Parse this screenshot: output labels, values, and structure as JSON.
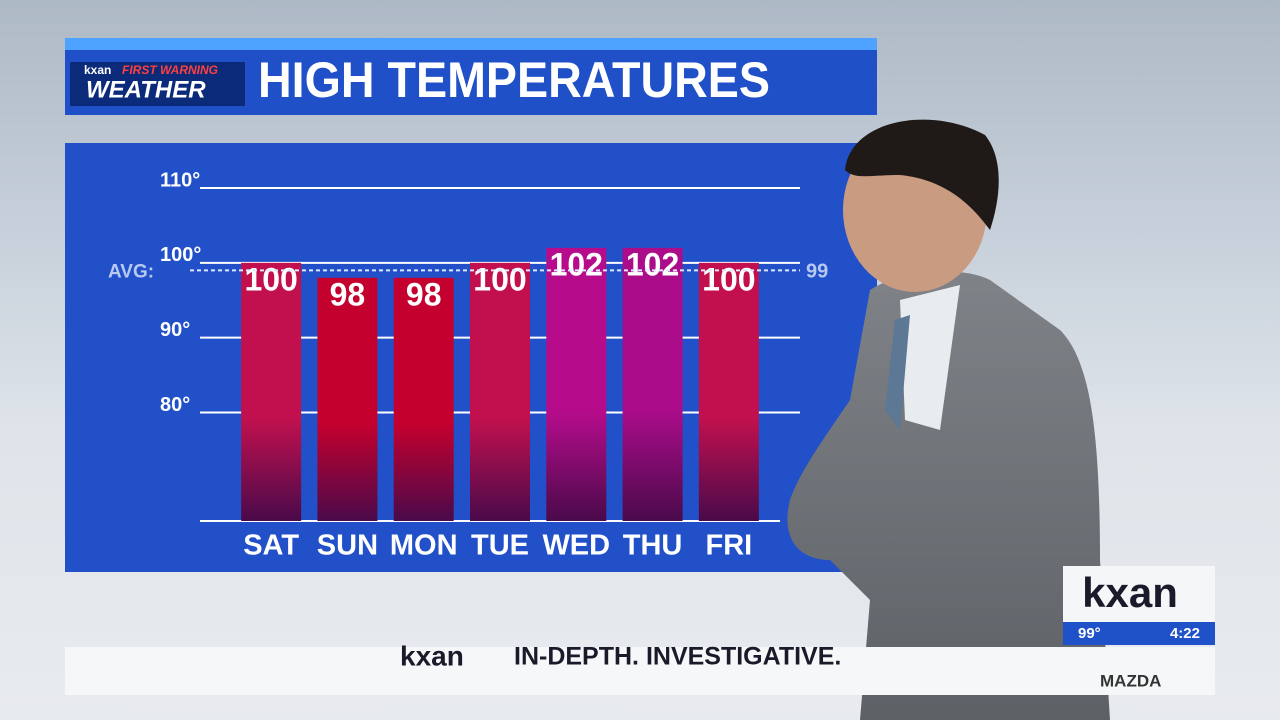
{
  "branding": {
    "station": "kxan",
    "tagline": "FIRST WARNING",
    "segment": "WEATHER"
  },
  "chart_data": {
    "type": "bar",
    "title": "HIGH TEMPERATURES",
    "categories": [
      "SAT",
      "SUN",
      "MON",
      "TUE",
      "WED",
      "THU",
      "FRI"
    ],
    "values": [
      100,
      98,
      98,
      100,
      102,
      102,
      100
    ],
    "colors": [
      "#c2104e",
      "#c4002e",
      "#c4002e",
      "#c2104e",
      "#b60c8c",
      "#aa0c8a",
      "#c2104e"
    ],
    "ylim": [
      65.5,
      110
    ],
    "yticks": [
      {
        "value": 80,
        "label": "80°"
      },
      {
        "value": 90,
        "label": "90°"
      },
      {
        "value": 100,
        "label": "100°"
      },
      {
        "value": 110,
        "label": "110°"
      }
    ],
    "grid": true,
    "average": 99,
    "average_label": "AVG:"
  },
  "bug": {
    "station": "kxan",
    "temperature": "99°",
    "time": "4:22"
  },
  "ticker": {
    "station": "kxan",
    "text": "IN-DEPTH. INVESTIGATIVE.",
    "sponsor": "MAZDA"
  }
}
